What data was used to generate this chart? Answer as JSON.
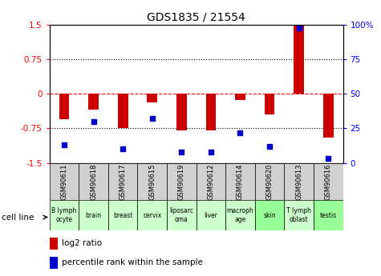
{
  "title": "GDS1835 / 21554",
  "samples": [
    "GSM90611",
    "GSM90618",
    "GSM90617",
    "GSM90615",
    "GSM90619",
    "GSM90612",
    "GSM90614",
    "GSM90620",
    "GSM90613",
    "GSM90616"
  ],
  "cell_lines": [
    "B lymph\nocyte",
    "brain",
    "breast",
    "cervix",
    "liposarc\noma",
    "liver",
    "macroph\nage",
    "skin",
    "T lymph\noblast",
    "testis"
  ],
  "cell_line_colors": [
    "#ccffcc",
    "#ccffcc",
    "#ccffcc",
    "#ccffcc",
    "#ccffcc",
    "#ccffcc",
    "#ccffcc",
    "#99ff99",
    "#ccffcc",
    "#99ff99"
  ],
  "log2_ratio": [
    -0.55,
    -0.35,
    -0.75,
    -0.18,
    -0.8,
    -0.8,
    -0.13,
    -0.45,
    1.48,
    -0.95
  ],
  "percentile_rank": [
    13,
    30,
    10,
    32,
    8,
    8,
    22,
    12,
    98,
    3
  ],
  "ylim_left": [
    -1.5,
    1.5
  ],
  "ylim_right": [
    0,
    100
  ],
  "yticks_left": [
    -1.5,
    -0.75,
    0,
    0.75,
    1.5
  ],
  "yticks_right": [
    0,
    25,
    50,
    75,
    100
  ],
  "bar_color": "#cc0000",
  "dot_color": "#0000cc",
  "hline_y": [
    0.75,
    0,
    -0.75
  ],
  "bar_width": 0.35,
  "cell_line_label": "cell line",
  "sample_box_color": "#d0d0d0"
}
